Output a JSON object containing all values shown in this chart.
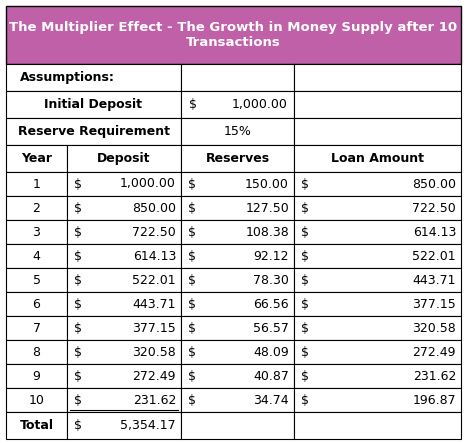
{
  "title_line1": "The Multiplier Effect - The Growth in Money Supply after 10",
  "title_line2": "Transactions",
  "title_bg": "#c060a8",
  "title_color": "#ffffff",
  "white": "#ffffff",
  "black": "#000000",
  "assumptions_label": "Assumptions:",
  "initial_deposit_label": "Initial Deposit",
  "initial_deposit_value": "1,000.00",
  "reserve_req_label": "Reserve Requirement",
  "reserve_req_value": "15%",
  "col_headers": [
    "Year",
    "Deposit",
    "Reserves",
    "Loan Amount"
  ],
  "rows": [
    [
      "1",
      "$",
      "1,000.00",
      "$",
      "150.00",
      "$",
      "850.00"
    ],
    [
      "2",
      "$",
      "850.00",
      "$",
      "127.50",
      "$",
      "722.50"
    ],
    [
      "3",
      "$",
      "722.50",
      "$",
      "108.38",
      "$",
      "614.13"
    ],
    [
      "4",
      "$",
      "614.13",
      "$",
      "92.12",
      "$",
      "522.01"
    ],
    [
      "5",
      "$",
      "522.01",
      "$",
      "78.30",
      "$",
      "443.71"
    ],
    [
      "6",
      "$",
      "443.71",
      "$",
      "66.56",
      "$",
      "377.15"
    ],
    [
      "7",
      "$",
      "377.15",
      "$",
      "56.57",
      "$",
      "320.58"
    ],
    [
      "8",
      "$",
      "320.58",
      "$",
      "48.09",
      "$",
      "272.49"
    ],
    [
      "9",
      "$",
      "272.49",
      "$",
      "40.87",
      "$",
      "231.62"
    ],
    [
      "10",
      "$",
      "231.62",
      "$",
      "34.74",
      "$",
      "196.87"
    ]
  ],
  "total_label": "Total",
  "total_dollar": "$",
  "total_value": "5,354.17",
  "figw": 4.67,
  "figh": 4.43,
  "dpi": 100
}
